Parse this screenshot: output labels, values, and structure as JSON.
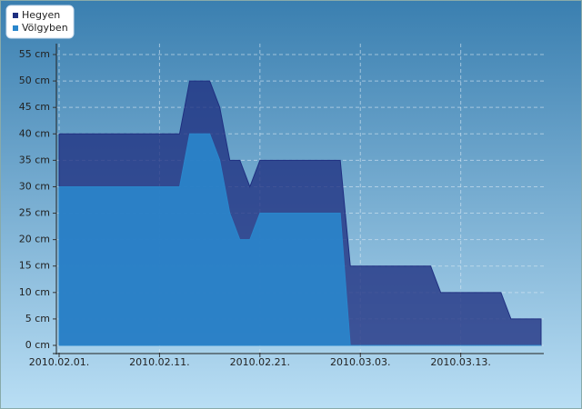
{
  "chart_data": {
    "type": "area",
    "x": [
      "2010-02-01",
      "2010-02-13",
      "2010-02-14",
      "2010-02-16",
      "2010-02-17",
      "2010-02-18",
      "2010-02-19",
      "2010-02-20",
      "2010-02-21",
      "2010-03-01",
      "2010-03-02",
      "2010-03-10",
      "2010-03-11",
      "2010-03-17",
      "2010-03-18",
      "2010-03-21"
    ],
    "series": [
      {
        "name": "Hegyen",
        "color": "#1f2f80",
        "values": [
          40,
          40,
          50,
          50,
          45,
          35,
          35,
          30,
          35,
          35,
          15,
          15,
          10,
          10,
          5,
          5
        ]
      },
      {
        "name": "Völgyben",
        "color": "#2a86cc",
        "values": [
          30,
          30,
          40,
          40,
          35,
          25,
          20,
          20,
          25,
          25,
          0,
          0,
          0,
          0,
          0,
          0
        ]
      }
    ],
    "xlim": [
      "2010-02-01",
      "2010-03-21"
    ],
    "xticks": [
      {
        "value": "2010-02-01",
        "label": "2010.02.01."
      },
      {
        "value": "2010-02-11",
        "label": "2010.02.11."
      },
      {
        "value": "2010-02-21",
        "label": "2010.02.21."
      },
      {
        "value": "2010-03-03",
        "label": "2010.03.03."
      },
      {
        "value": "2010-03-13",
        "label": "2010.03.13."
      }
    ],
    "ylim": [
      0,
      55
    ],
    "yticks": [
      {
        "value": 0,
        "label": "0 cm"
      },
      {
        "value": 5,
        "label": "5 cm"
      },
      {
        "value": 10,
        "label": "10 cm"
      },
      {
        "value": 15,
        "label": "15 cm"
      },
      {
        "value": 20,
        "label": "20 cm"
      },
      {
        "value": 25,
        "label": "25 cm"
      },
      {
        "value": 30,
        "label": "30 cm"
      },
      {
        "value": 35,
        "label": "35 cm"
      },
      {
        "value": 40,
        "label": "40 cm"
      },
      {
        "value": 45,
        "label": "45 cm"
      },
      {
        "value": 50,
        "label": "50 cm"
      },
      {
        "value": 55,
        "label": "55 cm"
      }
    ],
    "grid": true,
    "legend": "top-left"
  }
}
